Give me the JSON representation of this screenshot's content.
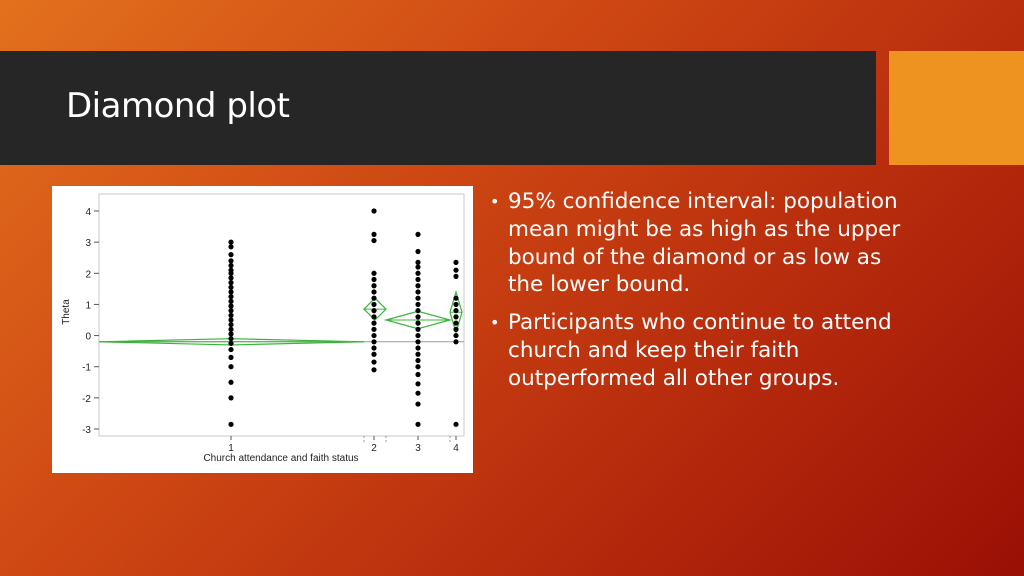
{
  "slide": {
    "title": "Diamond plot",
    "bullets": [
      "95% confidence interval: population mean might be as high as the upper bound of the diamond or as low as the lower bound.",
      "Participants who continue to attend church and keep their faith outperformed all other groups."
    ]
  },
  "colors": {
    "diamond": "#3cb43c",
    "points": "#000000",
    "reference_line": "#9a9a9a"
  },
  "chart_data": {
    "type": "scatter",
    "subtype": "diamond-plot",
    "title": "",
    "xlabel": "Church attendance and faith status",
    "ylabel": "Theta",
    "categories": [
      "1",
      "2",
      "3",
      "4"
    ],
    "ylim": [
      -3,
      4
    ],
    "yticks": [
      4,
      3,
      2,
      1,
      0,
      -1,
      -2,
      -3
    ],
    "reference_line": -0.2,
    "groups": [
      {
        "category": "1",
        "points": [
          3.0,
          2.85,
          2.6,
          2.4,
          2.25,
          2.1,
          2.0,
          1.85,
          1.7,
          1.55,
          1.4,
          1.25,
          1.1,
          0.95,
          0.8,
          0.65,
          0.5,
          0.35,
          0.2,
          0.05,
          -0.1,
          -0.25,
          -0.45,
          -0.7,
          -1.0,
          -1.5,
          -2.0,
          -2.85
        ],
        "diamond": {
          "mean": -0.2,
          "upper": -0.1,
          "lower": -0.3
        }
      },
      {
        "category": "2",
        "points": [
          4.0,
          3.25,
          3.05,
          2.0,
          1.8,
          1.6,
          1.4,
          1.2,
          1.0,
          0.8,
          0.6,
          0.4,
          0.2,
          0.0,
          -0.2,
          -0.4,
          -0.6,
          -0.85,
          -1.1
        ],
        "diamond": {
          "mean": 0.85,
          "upper": 1.2,
          "lower": 0.5
        }
      },
      {
        "category": "3",
        "points": [
          3.25,
          2.7,
          2.35,
          2.2,
          2.0,
          1.8,
          1.6,
          1.4,
          1.2,
          1.0,
          0.8,
          0.6,
          0.4,
          0.2,
          0.0,
          -0.2,
          -0.4,
          -0.6,
          -0.8,
          -1.0,
          -1.25,
          -1.55,
          -1.85,
          -2.2,
          -2.85
        ],
        "diamond": {
          "mean": 0.5,
          "upper": 0.78,
          "lower": 0.22
        }
      },
      {
        "category": "4",
        "points": [
          2.35,
          2.1,
          1.9,
          1.2,
          1.0,
          0.8,
          0.6,
          0.4,
          0.2,
          0.0,
          -0.2,
          -2.85
        ],
        "diamond": {
          "mean": 0.75,
          "upper": 1.4,
          "lower": 0.1
        }
      }
    ]
  }
}
